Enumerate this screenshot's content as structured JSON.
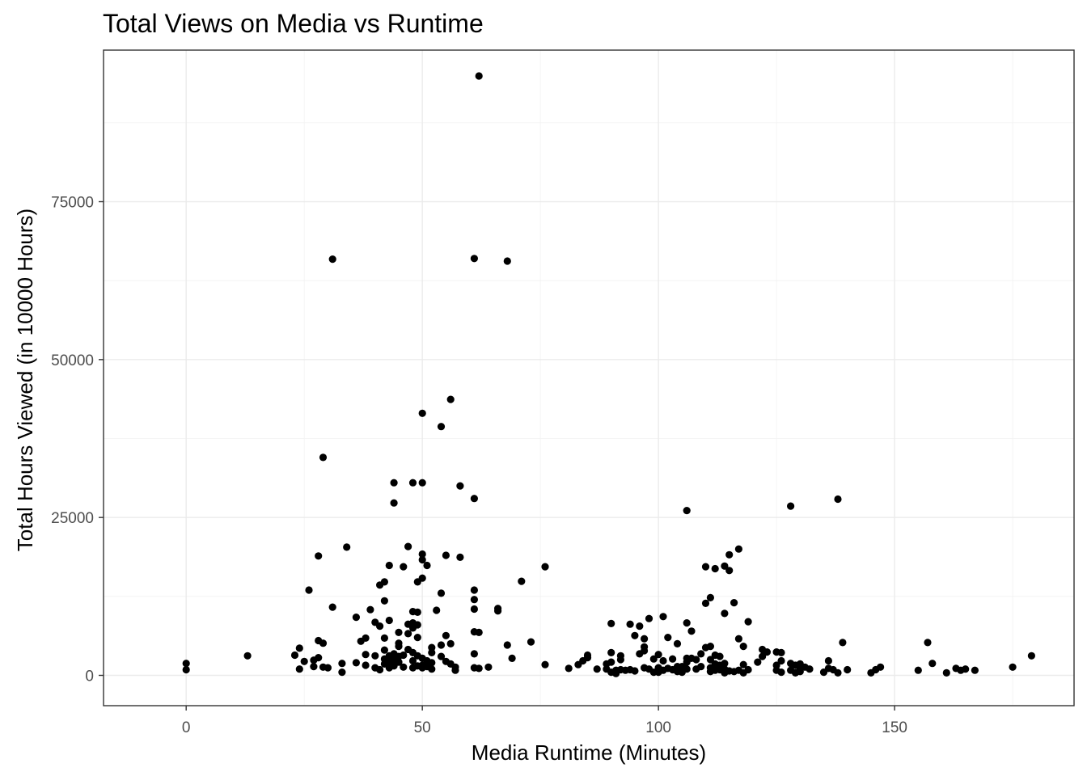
{
  "chart_data": {
    "type": "scatter",
    "title": "Total Views on Media vs Runtime",
    "xlabel": "Media Runtime (Minutes)",
    "ylabel": "Total Hours Viewed (in 10000 Hours)",
    "xlim": [
      -17.5,
      188
    ],
    "ylim": [
      -4800,
      99000
    ],
    "x_ticks": [
      0,
      50,
      100,
      150
    ],
    "x_tick_labels": [
      "0",
      "50",
      "100",
      "150"
    ],
    "y_ticks": [
      0,
      25000,
      50000,
      75000
    ],
    "y_tick_labels": [
      "0",
      "25000",
      "50000",
      "75000"
    ],
    "grid": true,
    "legend": "none",
    "point_color": "#000000",
    "points": [
      [
        0,
        1900
      ],
      [
        0,
        900
      ],
      [
        13,
        3100
      ],
      [
        23,
        3200
      ],
      [
        24,
        4300
      ],
      [
        24,
        1000
      ],
      [
        25,
        2200
      ],
      [
        26,
        13500
      ],
      [
        27,
        1400
      ],
      [
        27,
        2400
      ],
      [
        28,
        18900
      ],
      [
        28,
        5500
      ],
      [
        28,
        2800
      ],
      [
        29,
        34500
      ],
      [
        29,
        5100
      ],
      [
        29,
        1300
      ],
      [
        30,
        1200
      ],
      [
        31,
        65900
      ],
      [
        31,
        10800
      ],
      [
        33,
        1900
      ],
      [
        33,
        500
      ],
      [
        34,
        20300
      ],
      [
        36,
        9200
      ],
      [
        36,
        2000
      ],
      [
        37,
        5400
      ],
      [
        38,
        5900
      ],
      [
        38,
        3300
      ],
      [
        38,
        1600
      ],
      [
        39,
        10400
      ],
      [
        40,
        8400
      ],
      [
        40,
        3100
      ],
      [
        40,
        1200
      ],
      [
        41,
        7800
      ],
      [
        41,
        14300
      ],
      [
        41,
        900
      ],
      [
        42,
        14800
      ],
      [
        42,
        11800
      ],
      [
        42,
        5900
      ],
      [
        42,
        4000
      ],
      [
        42,
        2600
      ],
      [
        42,
        1800
      ],
      [
        43,
        17400
      ],
      [
        43,
        8700
      ],
      [
        43,
        3100
      ],
      [
        43,
        2000
      ],
      [
        43,
        1200
      ],
      [
        44,
        30500
      ],
      [
        44,
        27300
      ],
      [
        44,
        3400
      ],
      [
        44,
        2500
      ],
      [
        44,
        1500
      ],
      [
        45,
        6800
      ],
      [
        45,
        5100
      ],
      [
        45,
        4600
      ],
      [
        45,
        3000
      ],
      [
        45,
        2100
      ],
      [
        46,
        17200
      ],
      [
        46,
        3200
      ],
      [
        46,
        1300
      ],
      [
        47,
        20400
      ],
      [
        47,
        8100
      ],
      [
        47,
        6600
      ],
      [
        47,
        4100
      ],
      [
        48,
        30500
      ],
      [
        48,
        10100
      ],
      [
        48,
        8300
      ],
      [
        48,
        7500
      ],
      [
        48,
        3600
      ],
      [
        48,
        2300
      ],
      [
        48,
        1200
      ],
      [
        49,
        10000
      ],
      [
        49,
        8000
      ],
      [
        49,
        6000
      ],
      [
        49,
        3100
      ],
      [
        49,
        1500
      ],
      [
        49,
        14800
      ],
      [
        50,
        41500
      ],
      [
        50,
        30500
      ],
      [
        50,
        19200
      ],
      [
        50,
        18300
      ],
      [
        50,
        15400
      ],
      [
        50,
        2700
      ],
      [
        50,
        1600
      ],
      [
        50,
        1200
      ],
      [
        51,
        17400
      ],
      [
        51,
        2300
      ],
      [
        51,
        1400
      ],
      [
        52,
        4400
      ],
      [
        52,
        3600
      ],
      [
        52,
        2000
      ],
      [
        52,
        1000
      ],
      [
        53,
        10300
      ],
      [
        54,
        39400
      ],
      [
        54,
        13000
      ],
      [
        54,
        4800
      ],
      [
        54,
        3000
      ],
      [
        55,
        19000
      ],
      [
        55,
        6300
      ],
      [
        55,
        2200
      ],
      [
        56,
        43700
      ],
      [
        56,
        5000
      ],
      [
        56,
        1800
      ],
      [
        57,
        1300
      ],
      [
        57,
        800
      ],
      [
        58,
        30000
      ],
      [
        58,
        18700
      ],
      [
        61,
        28000
      ],
      [
        61,
        13500
      ],
      [
        61,
        12000
      ],
      [
        61,
        10500
      ],
      [
        61,
        6900
      ],
      [
        61,
        3400
      ],
      [
        61,
        1200
      ],
      [
        62,
        94900
      ],
      [
        61,
        66000
      ],
      [
        62,
        6800
      ],
      [
        62,
        1100
      ],
      [
        64,
        1300
      ],
      [
        66,
        10600
      ],
      [
        66,
        10200
      ],
      [
        68,
        65600
      ],
      [
        68,
        4800
      ],
      [
        69,
        2700
      ],
      [
        71,
        14900
      ],
      [
        73,
        5300
      ],
      [
        76,
        17200
      ],
      [
        76,
        1700
      ],
      [
        81,
        1100
      ],
      [
        83,
        1700
      ],
      [
        84,
        2300
      ],
      [
        85,
        2800
      ],
      [
        85,
        3200
      ],
      [
        87,
        1000
      ],
      [
        89,
        1000
      ],
      [
        89,
        1800
      ],
      [
        90,
        2100
      ],
      [
        90,
        500
      ],
      [
        90,
        8200
      ],
      [
        90,
        3600
      ],
      [
        91,
        800
      ],
      [
        91,
        300
      ],
      [
        92,
        2500
      ],
      [
        92,
        3100
      ],
      [
        92,
        900
      ],
      [
        93,
        800
      ],
      [
        94,
        8100
      ],
      [
        94,
        900
      ],
      [
        95,
        6300
      ],
      [
        95,
        700
      ],
      [
        96,
        7800
      ],
      [
        96,
        3400
      ],
      [
        97,
        4500
      ],
      [
        97,
        3900
      ],
      [
        97,
        1200
      ],
      [
        97,
        5800
      ],
      [
        98,
        9000
      ],
      [
        98,
        1000
      ],
      [
        99,
        2600
      ],
      [
        99,
        500
      ],
      [
        100,
        3300
      ],
      [
        100,
        1200
      ],
      [
        100,
        500
      ],
      [
        101,
        9300
      ],
      [
        101,
        2300
      ],
      [
        101,
        800
      ],
      [
        102,
        6000
      ],
      [
        102,
        1100
      ],
      [
        103,
        2600
      ],
      [
        103,
        900
      ],
      [
        104,
        5000
      ],
      [
        104,
        1400
      ],
      [
        104,
        600
      ],
      [
        105,
        1400
      ],
      [
        105,
        500
      ],
      [
        106,
        26100
      ],
      [
        106,
        8300
      ],
      [
        106,
        2700
      ],
      [
        106,
        2100
      ],
      [
        106,
        1000
      ],
      [
        107,
        7000
      ],
      [
        107,
        2700
      ],
      [
        108,
        2500
      ],
      [
        108,
        1000
      ],
      [
        109,
        3400
      ],
      [
        109,
        1400
      ],
      [
        110,
        17200
      ],
      [
        110,
        11400
      ],
      [
        110,
        4400
      ],
      [
        111,
        12300
      ],
      [
        111,
        4600
      ],
      [
        111,
        2500
      ],
      [
        111,
        1200
      ],
      [
        111,
        600
      ],
      [
        112,
        16900
      ],
      [
        112,
        3200
      ],
      [
        112,
        1800
      ],
      [
        112,
        800
      ],
      [
        113,
        3000
      ],
      [
        113,
        1600
      ],
      [
        113,
        900
      ],
      [
        114,
        17300
      ],
      [
        114,
        9800
      ],
      [
        114,
        1900
      ],
      [
        114,
        1000
      ],
      [
        114,
        400
      ],
      [
        115,
        19100
      ],
      [
        115,
        16600
      ],
      [
        115,
        700
      ],
      [
        116,
        11500
      ],
      [
        116,
        600
      ],
      [
        117,
        20000
      ],
      [
        117,
        5800
      ],
      [
        117,
        800
      ],
      [
        118,
        4600
      ],
      [
        118,
        1700
      ],
      [
        118,
        400
      ],
      [
        119,
        8500
      ],
      [
        119,
        900
      ],
      [
        121,
        2100
      ],
      [
        122,
        4100
      ],
      [
        122,
        3000
      ],
      [
        123,
        3700
      ],
      [
        125,
        3700
      ],
      [
        125,
        1600
      ],
      [
        125,
        800
      ],
      [
        126,
        3600
      ],
      [
        126,
        2300
      ],
      [
        126,
        500
      ],
      [
        128,
        26800
      ],
      [
        128,
        1900
      ],
      [
        128,
        800
      ],
      [
        129,
        1600
      ],
      [
        129,
        400
      ],
      [
        130,
        1800
      ],
      [
        130,
        1000
      ],
      [
        130,
        600
      ],
      [
        131,
        1300
      ],
      [
        132,
        1000
      ],
      [
        135,
        500
      ],
      [
        136,
        2300
      ],
      [
        136,
        1100
      ],
      [
        137,
        900
      ],
      [
        138,
        27900
      ],
      [
        138,
        400
      ],
      [
        139,
        5200
      ],
      [
        140,
        900
      ],
      [
        145,
        400
      ],
      [
        146,
        900
      ],
      [
        147,
        1300
      ],
      [
        155,
        800
      ],
      [
        157,
        5200
      ],
      [
        158,
        1900
      ],
      [
        161,
        400
      ],
      [
        163,
        1100
      ],
      [
        164,
        800
      ],
      [
        165,
        1000
      ],
      [
        167,
        800
      ],
      [
        175,
        1300
      ],
      [
        179,
        3100
      ]
    ]
  }
}
